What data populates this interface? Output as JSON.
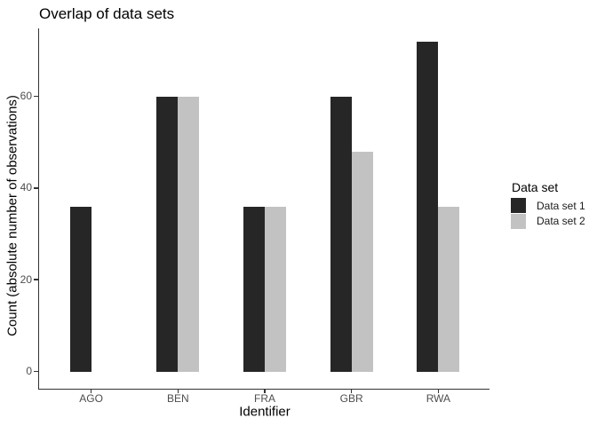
{
  "chart_data": {
    "type": "bar",
    "title": "Overlap of data sets",
    "xlabel": "Identifier",
    "ylabel": "Count (absolute number of observations)",
    "categories": [
      "AGO",
      "BEN",
      "FRA",
      "GBR",
      "RWA"
    ],
    "series": [
      {
        "name": "Data set 1",
        "color": "#262626",
        "values": [
          36,
          60,
          36,
          60,
          72
        ]
      },
      {
        "name": "Data set 2",
        "color": "#c2c2c2",
        "values": [
          null,
          60,
          36,
          48,
          36
        ]
      }
    ],
    "yticks": [
      0,
      20,
      40,
      60
    ],
    "ylim": [
      0,
      75
    ],
    "legend_title": "Data set",
    "legend_position": "right",
    "grid": false,
    "axis_color": "#333333",
    "tick_label_color": "#4d4d4d"
  }
}
